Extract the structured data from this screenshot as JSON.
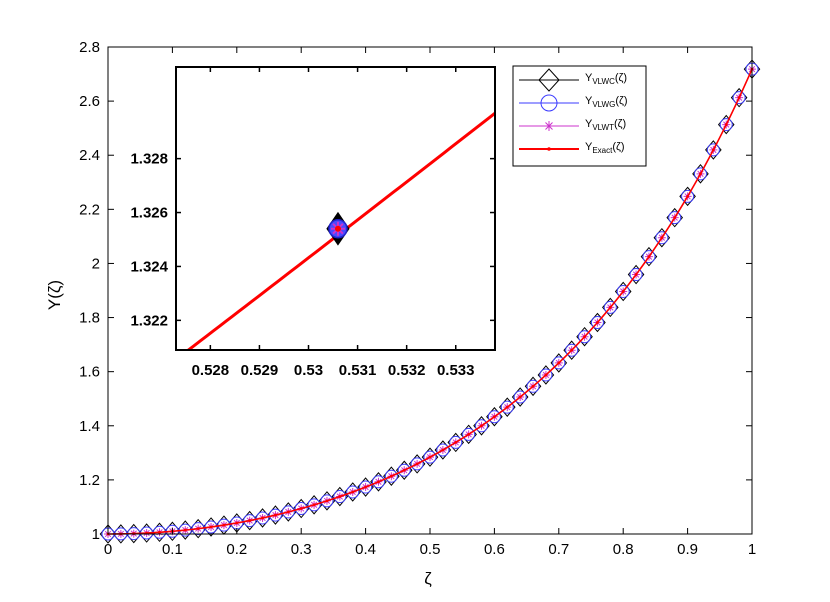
{
  "chart_data": {
    "type": "line",
    "xlabel": "ζ",
    "ylabel": "Y(ζ)",
    "xlim": [
      0,
      1
    ],
    "ylim": [
      1,
      2.8
    ],
    "x_ticks": [
      "0",
      "0.1",
      "0.2",
      "0.3",
      "0.4",
      "0.5",
      "0.6",
      "0.7",
      "0.8",
      "0.9",
      "1"
    ],
    "y_ticks": [
      "1",
      "1.2",
      "1.4",
      "1.6",
      "1.8",
      "2",
      "2.2",
      "2.4",
      "2.6",
      "2.8"
    ],
    "function": "Y(ζ) = exp(ζ²)",
    "sample_step": 0.02,
    "grid": false,
    "legend_position": "top-right",
    "legend": [
      {
        "base": "Y",
        "sub": "VLWC",
        "arg": "(ζ)",
        "marker": "diamond",
        "color": "#000000"
      },
      {
        "base": "Y",
        "sub": "VLWG",
        "arg": "(ζ)",
        "marker": "circle",
        "color": "#3b3bff"
      },
      {
        "base": "Y",
        "sub": "VLWT",
        "arg": "(ζ)",
        "marker": "asterisk",
        "color": "#cc33cc"
      },
      {
        "base": "Y",
        "sub": "Exact",
        "arg": "(ζ)",
        "marker": "dot",
        "color": "#ff0000"
      }
    ],
    "inset": {
      "xlim": [
        0.5273,
        0.5338
      ],
      "ylim": [
        1.3209,
        1.3314
      ],
      "x_ticks": [
        "0.528",
        "0.529",
        "0.53",
        "0.531",
        "0.532",
        "0.533"
      ],
      "y_ticks": [
        "1.322",
        "1.324",
        "1.326",
        "1.328"
      ],
      "marker_point": {
        "x": 0.5306,
        "y": 1.3254
      }
    }
  }
}
